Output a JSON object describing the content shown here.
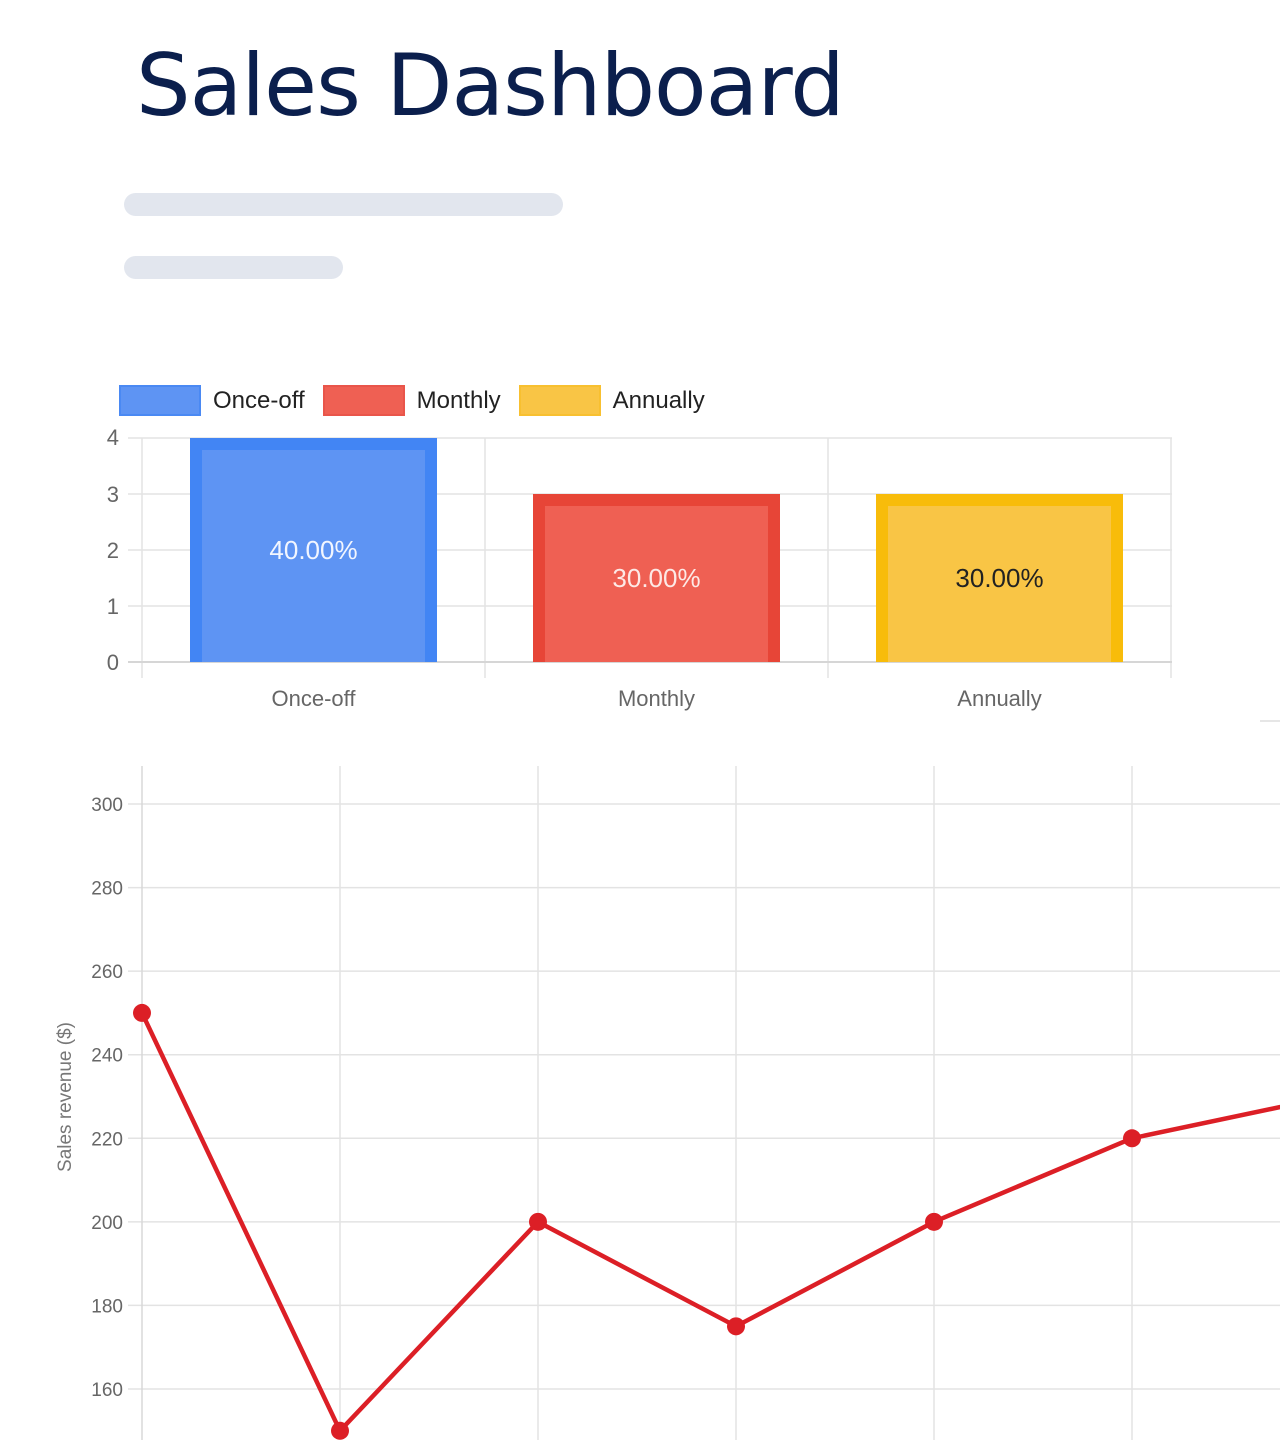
{
  "header": {
    "title": "Sales Dashboard"
  },
  "colors": {
    "title": "#0b1f4d",
    "skeleton": "#e2e6ee",
    "once_off_fill": "#5e94f3",
    "once_off_border": "#4285f4",
    "monthly_fill": "#ef6053",
    "monthly_border": "#e74537",
    "annually_fill": "#f9c545",
    "annually_border": "#f8bc0a",
    "line": "#dc1f26",
    "grid": "#e3e3e3",
    "axis_text": "#666666"
  },
  "legend": {
    "items": [
      {
        "label": "Once-off"
      },
      {
        "label": "Monthly"
      },
      {
        "label": "Annually"
      }
    ]
  },
  "chart_data": [
    {
      "type": "bar",
      "title": "",
      "categories": [
        "Once-off",
        "Monthly",
        "Annually"
      ],
      "values": [
        4,
        3,
        3
      ],
      "data_labels": [
        "40.00%",
        "30.00%",
        "30.00%"
      ],
      "xlabel": "",
      "ylabel": "",
      "ylim": [
        0,
        4
      ],
      "yticks": [
        0,
        1,
        2,
        3,
        4
      ],
      "legend": [
        "Once-off",
        "Monthly",
        "Annually"
      ],
      "legend_position": "top-left",
      "grid": true
    },
    {
      "type": "line",
      "title": "",
      "x": [
        1,
        2,
        3,
        4,
        5,
        6,
        7
      ],
      "series": [
        {
          "name": "Sales revenue",
          "values": [
            250,
            150,
            200,
            175,
            200,
            220,
            230
          ]
        }
      ],
      "xlabel": "",
      "ylabel": "Sales revenue ($)",
      "yticks": [
        160,
        180,
        200,
        220,
        240,
        260,
        280,
        300
      ],
      "ylim": [
        150,
        310
      ],
      "grid": true,
      "note": "chart cropped at right and bottom; last value extrapolated from visible segment"
    }
  ]
}
